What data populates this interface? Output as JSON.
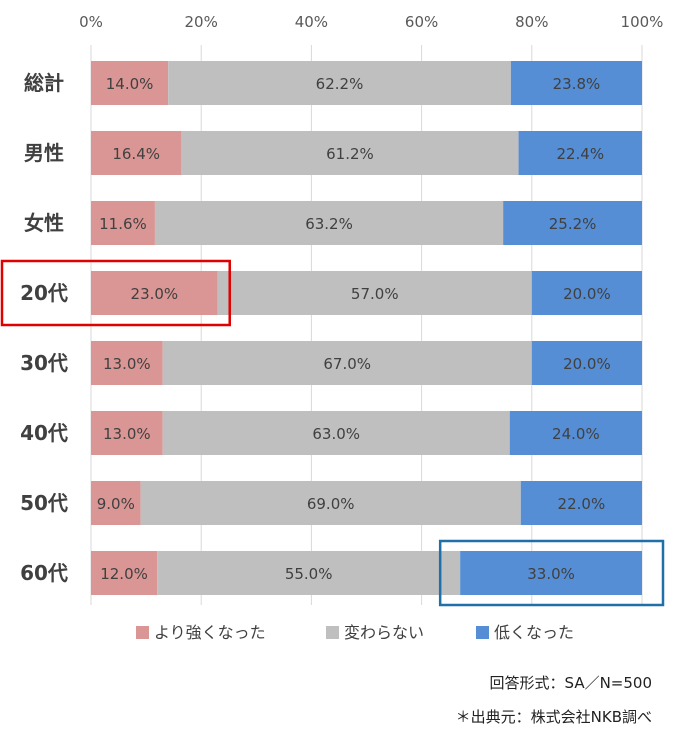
{
  "chart_data": {
    "type": "bar",
    "orientation": "horizontal",
    "stacked": "percent",
    "categories": [
      "総計",
      "男性",
      "女性",
      "20代",
      "30代",
      "40代",
      "50代",
      "60代"
    ],
    "series": [
      {
        "name": "より強くなった",
        "color": "#da9694",
        "values": [
          14.0,
          16.4,
          11.6,
          23.0,
          13.0,
          13.0,
          9.0,
          12.0
        ],
        "labels": [
          "14.0%",
          "16.4%",
          "11.6%",
          "23.0%",
          "13.0%",
          "13.0%",
          "9.0%",
          "12.0%"
        ]
      },
      {
        "name": "変わらない",
        "color": "#bfbfbf",
        "values": [
          62.2,
          61.2,
          63.2,
          57.0,
          67.0,
          63.0,
          69.0,
          55.0
        ],
        "labels": [
          "62.2%",
          "61.2%",
          "63.2%",
          "57.0%",
          "67.0%",
          "63.0%",
          "69.0%",
          "55.0%"
        ]
      },
      {
        "name": "低くなった",
        "color": "#558ed5",
        "values": [
          23.8,
          22.4,
          25.2,
          20.0,
          20.0,
          24.0,
          22.0,
          33.0
        ],
        "labels": [
          "23.8%",
          "22.4%",
          "25.2%",
          "20.0%",
          "20.0%",
          "24.0%",
          "22.0%",
          "33.0%"
        ]
      }
    ],
    "xlim": [
      0,
      100
    ],
    "xticks": [
      "0%",
      "20%",
      "40%",
      "60%",
      "80%",
      "100%"
    ],
    "grid": true,
    "legend": "bottom",
    "highlights": [
      {
        "category": "20代",
        "series": "より強くなった",
        "color": "#e00000"
      },
      {
        "category": "60代",
        "series": "低くなった",
        "color": "#1f6fa8"
      }
    ]
  },
  "notes": {
    "method": "回答形式：SA／N=500",
    "source": "＊出典元：株式会社NKB調べ"
  }
}
